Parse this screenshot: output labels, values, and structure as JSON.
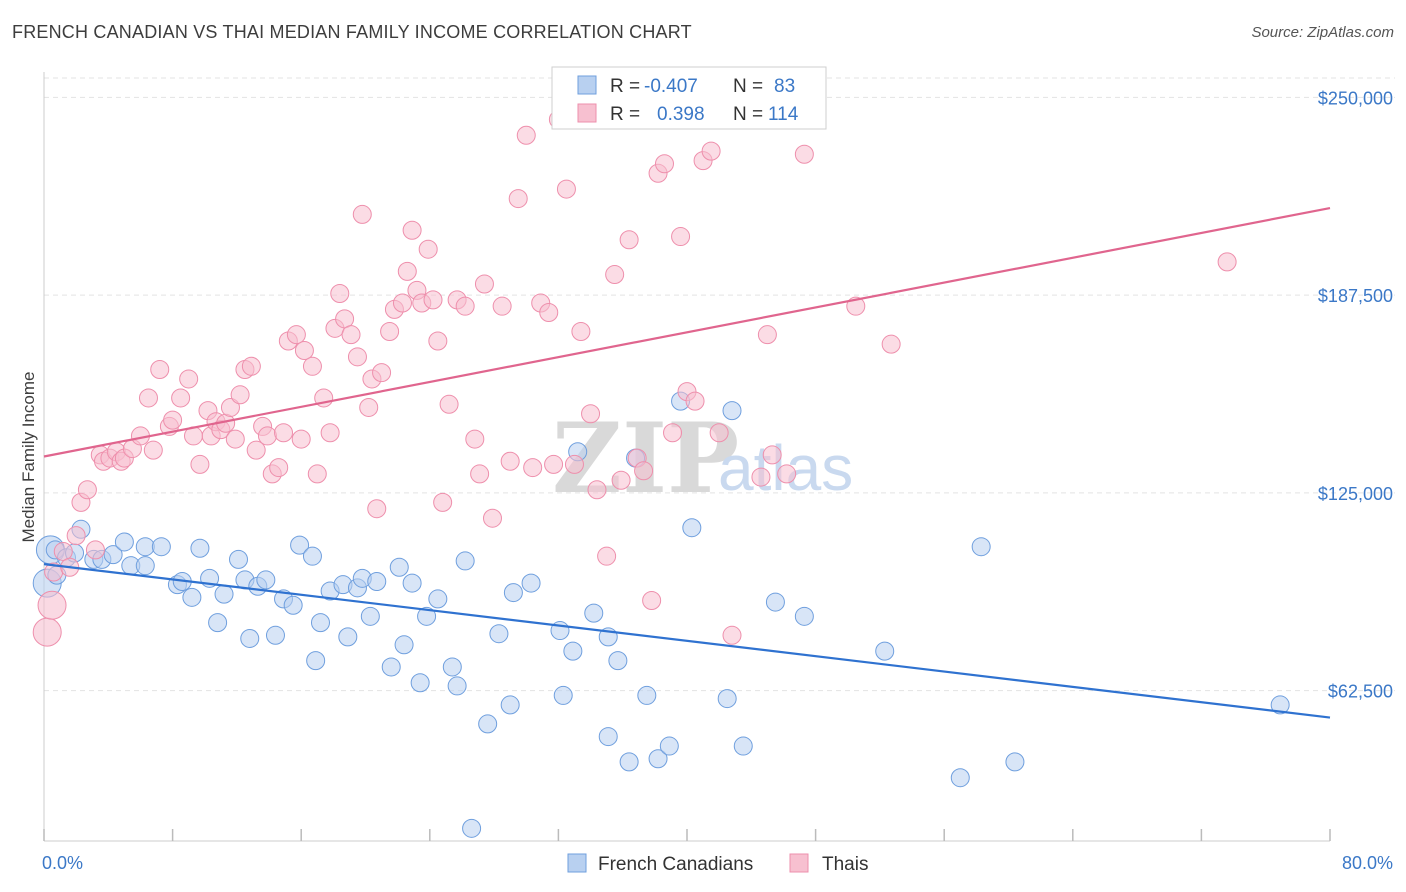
{
  "title": "FRENCH CANADIAN VS THAI MEDIAN FAMILY INCOME CORRELATION CHART",
  "source": "Source: ZipAtlas.com",
  "watermark": {
    "zip": "ZIP",
    "atlas": "atlas"
  },
  "colors": {
    "blue_fill": "#b8d0f0",
    "blue_stroke": "#6f9fde",
    "blue_line": "#2f72d0",
    "pink_fill": "#f7c0d0",
    "pink_stroke": "#ee8fac",
    "pink_line": "#e0658e",
    "axis_text": "#3b78c7",
    "grid": "#e3e3e3"
  },
  "legend": {
    "r_label": "R =",
    "n_label": "N =",
    "rows": [
      {
        "series": "French Canadians",
        "r": "-0.407",
        "n": "83"
      },
      {
        "series": "Thais",
        "r": "0.398",
        "n": "114"
      }
    ]
  },
  "bottom_legend": [
    "French Canadians",
    "Thais"
  ],
  "chart_data": {
    "type": "scatter",
    "xlabel": "",
    "ylabel": "Median Family Income",
    "xlim": [
      0,
      80
    ],
    "ylim": [
      15000,
      258000
    ],
    "x_tick_labels": [
      "0.0%",
      "80.0%"
    ],
    "y_ticks": [
      {
        "value": 62500,
        "label": "$62,500"
      },
      {
        "value": 125000,
        "label": "$125,000"
      },
      {
        "value": 187500,
        "label": "$187,500"
      },
      {
        "value": 250000,
        "label": "$250,000"
      }
    ],
    "grid": true,
    "legend_position": "top-center",
    "series": [
      {
        "name": "French Canadians",
        "trend": {
          "x": [
            0,
            80
          ],
          "y": [
            102500,
            54000
          ]
        },
        "points": [
          [
            0.7,
            107000
          ],
          [
            0.8,
            99000
          ],
          [
            1.4,
            104500
          ],
          [
            1.9,
            106000
          ],
          [
            2.3,
            113500
          ],
          [
            3.1,
            104000
          ],
          [
            3.6,
            104000
          ],
          [
            4.3,
            105500
          ],
          [
            5.0,
            109500
          ],
          [
            5.4,
            102000
          ],
          [
            6.3,
            108000
          ],
          [
            6.3,
            102000
          ],
          [
            7.3,
            108000
          ],
          [
            8.3,
            96000
          ],
          [
            8.6,
            97000
          ],
          [
            9.2,
            92000
          ],
          [
            9.7,
            107500
          ],
          [
            10.3,
            98000
          ],
          [
            10.8,
            84000
          ],
          [
            11.2,
            93000
          ],
          [
            12.1,
            104000
          ],
          [
            12.5,
            97500
          ],
          [
            12.8,
            79000
          ],
          [
            13.3,
            95500
          ],
          [
            13.8,
            97500
          ],
          [
            14.4,
            80000
          ],
          [
            14.9,
            91500
          ],
          [
            15.5,
            89500
          ],
          [
            15.9,
            108500
          ],
          [
            16.7,
            105000
          ],
          [
            16.9,
            72000
          ],
          [
            17.2,
            84000
          ],
          [
            17.8,
            94000
          ],
          [
            18.6,
            96000
          ],
          [
            18.9,
            79500
          ],
          [
            19.5,
            95000
          ],
          [
            19.8,
            98000
          ],
          [
            20.3,
            86000
          ],
          [
            20.7,
            97000
          ],
          [
            21.6,
            70000
          ],
          [
            22.1,
            101500
          ],
          [
            22.4,
            77000
          ],
          [
            22.9,
            96500
          ],
          [
            23.4,
            65000
          ],
          [
            23.8,
            86000
          ],
          [
            24.5,
            91500
          ],
          [
            25.4,
            70000
          ],
          [
            25.7,
            64000
          ],
          [
            26.2,
            103500
          ],
          [
            26.6,
            19000
          ],
          [
            27.6,
            52000
          ],
          [
            28.3,
            80500
          ],
          [
            29.0,
            58000
          ],
          [
            29.2,
            93500
          ],
          [
            30.3,
            96500
          ],
          [
            32.1,
            81500
          ],
          [
            32.3,
            61000
          ],
          [
            32.9,
            75000
          ],
          [
            33.2,
            138000
          ],
          [
            34.2,
            87000
          ],
          [
            35.1,
            48000
          ],
          [
            35.1,
            79500
          ],
          [
            35.7,
            72000
          ],
          [
            36.4,
            40000
          ],
          [
            36.8,
            136000
          ],
          [
            37.5,
            61000
          ],
          [
            38.2,
            41000
          ],
          [
            38.9,
            45000
          ],
          [
            39.6,
            154000
          ],
          [
            40.3,
            114000
          ],
          [
            42.5,
            60000
          ],
          [
            42.8,
            151000
          ],
          [
            43.5,
            45000
          ],
          [
            45.5,
            90500
          ],
          [
            47.3,
            86000
          ],
          [
            52.3,
            75000
          ],
          [
            57.0,
            35000
          ],
          [
            58.3,
            108000
          ],
          [
            60.4,
            40000
          ],
          [
            76.9,
            58000
          ]
        ],
        "large_points": [
          [
            0.2,
            96500
          ],
          [
            0.4,
            107000
          ]
        ]
      },
      {
        "name": "Thais",
        "trend": {
          "x": [
            0,
            80
          ],
          "y": [
            136500,
            215000
          ]
        },
        "points": [
          [
            0.6,
            100000
          ],
          [
            1.2,
            106500
          ],
          [
            1.6,
            101500
          ],
          [
            2.0,
            111500
          ],
          [
            2.3,
            122000
          ],
          [
            2.7,
            126000
          ],
          [
            3.2,
            107000
          ],
          [
            3.5,
            137000
          ],
          [
            3.7,
            135000
          ],
          [
            4.1,
            136000
          ],
          [
            4.5,
            138000
          ],
          [
            4.8,
            135000
          ],
          [
            5.0,
            136000
          ],
          [
            5.5,
            139000
          ],
          [
            6.0,
            143000
          ],
          [
            6.5,
            155000
          ],
          [
            6.8,
            138500
          ],
          [
            7.2,
            164000
          ],
          [
            7.8,
            146000
          ],
          [
            8.0,
            148000
          ],
          [
            8.5,
            155000
          ],
          [
            9.0,
            161000
          ],
          [
            9.3,
            143000
          ],
          [
            9.7,
            134000
          ],
          [
            10.2,
            151000
          ],
          [
            10.4,
            143000
          ],
          [
            10.7,
            147500
          ],
          [
            11.0,
            145000
          ],
          [
            11.3,
            147000
          ],
          [
            11.6,
            152000
          ],
          [
            11.9,
            142000
          ],
          [
            12.2,
            156000
          ],
          [
            12.5,
            164000
          ],
          [
            12.9,
            165000
          ],
          [
            13.2,
            138500
          ],
          [
            13.6,
            146000
          ],
          [
            13.9,
            143000
          ],
          [
            14.2,
            131000
          ],
          [
            14.6,
            133000
          ],
          [
            14.9,
            144000
          ],
          [
            15.2,
            173000
          ],
          [
            15.7,
            175000
          ],
          [
            16.0,
            142000
          ],
          [
            16.2,
            170000
          ],
          [
            16.7,
            165000
          ],
          [
            17.0,
            131000
          ],
          [
            17.4,
            155000
          ],
          [
            17.8,
            144000
          ],
          [
            18.1,
            177000
          ],
          [
            18.4,
            188000
          ],
          [
            18.7,
            180000
          ],
          [
            19.1,
            175000
          ],
          [
            19.5,
            168000
          ],
          [
            19.8,
            213000
          ],
          [
            20.2,
            152000
          ],
          [
            20.4,
            161000
          ],
          [
            20.7,
            120000
          ],
          [
            21.0,
            163000
          ],
          [
            21.5,
            176000
          ],
          [
            21.8,
            183000
          ],
          [
            22.3,
            185000
          ],
          [
            22.6,
            195000
          ],
          [
            22.9,
            208000
          ],
          [
            23.2,
            189000
          ],
          [
            23.5,
            185000
          ],
          [
            23.9,
            202000
          ],
          [
            24.2,
            186000
          ],
          [
            24.5,
            173000
          ],
          [
            24.8,
            122000
          ],
          [
            25.2,
            153000
          ],
          [
            25.7,
            186000
          ],
          [
            26.2,
            184000
          ],
          [
            26.8,
            142000
          ],
          [
            27.1,
            131000
          ],
          [
            27.4,
            191000
          ],
          [
            27.9,
            117000
          ],
          [
            28.5,
            184000
          ],
          [
            29.0,
            135000
          ],
          [
            29.5,
            218000
          ],
          [
            30.0,
            238000
          ],
          [
            30.4,
            133000
          ],
          [
            30.9,
            185000
          ],
          [
            31.4,
            182000
          ],
          [
            31.7,
            134000
          ],
          [
            32.0,
            243000
          ],
          [
            32.5,
            221000
          ],
          [
            33.0,
            134000
          ],
          [
            33.4,
            176000
          ],
          [
            34.0,
            150000
          ],
          [
            34.4,
            126000
          ],
          [
            35.0,
            105000
          ],
          [
            35.5,
            194000
          ],
          [
            35.9,
            129000
          ],
          [
            36.4,
            205000
          ],
          [
            36.9,
            136000
          ],
          [
            37.3,
            132000
          ],
          [
            37.8,
            91000
          ],
          [
            38.2,
            226000
          ],
          [
            38.6,
            229000
          ],
          [
            39.1,
            144000
          ],
          [
            39.6,
            206000
          ],
          [
            40.0,
            157000
          ],
          [
            40.5,
            154000
          ],
          [
            41.0,
            230000
          ],
          [
            41.5,
            233000
          ],
          [
            42.0,
            144000
          ],
          [
            42.8,
            80000
          ],
          [
            44.6,
            130000
          ],
          [
            45.0,
            175000
          ],
          [
            45.3,
            137000
          ],
          [
            46.2,
            131000
          ],
          [
            47.3,
            232000
          ],
          [
            50.5,
            184000
          ],
          [
            52.7,
            172000
          ],
          [
            73.6,
            198000
          ]
        ],
        "large_points": [
          [
            0.2,
            81000
          ],
          [
            0.5,
            89500
          ]
        ]
      }
    ]
  }
}
